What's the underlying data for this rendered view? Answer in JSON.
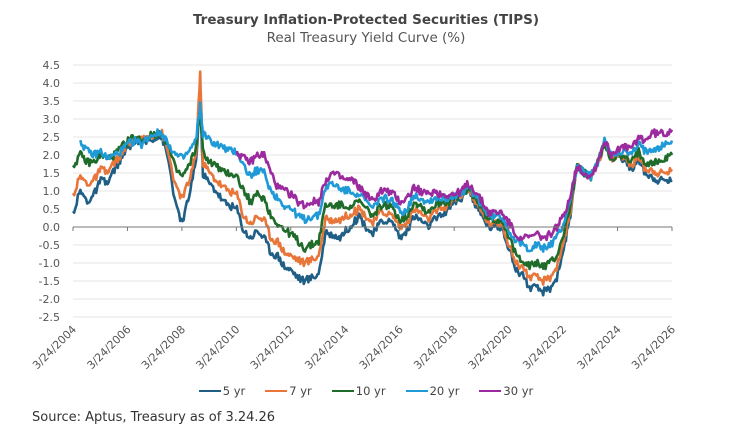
{
  "header": {
    "title": "Treasury Inflation-Protected Securities (TIPS)",
    "subtitle": "Real Treasury Yield Curve (%)"
  },
  "footer": {
    "source": "Source: Aptus, Treasury as of 3.24.26"
  },
  "chart_data": {
    "type": "line",
    "title": "Treasury Inflation-Protected Securities (TIPS)",
    "subtitle": "Real Treasury Yield Curve (%)",
    "xlabel": "",
    "ylabel": "",
    "ylim": [
      -2.5,
      4.5
    ],
    "xlim": [
      2004.23,
      2026.23
    ],
    "yticks": [
      "4.5",
      "4.0",
      "3.5",
      "3.0",
      "2.5",
      "2.0",
      "1.5",
      "1.0",
      "0.5",
      "0.0",
      "-0.5",
      "-1.0",
      "-1.5",
      "-2.0",
      "-2.5"
    ],
    "ytick_values": [
      4.5,
      4.0,
      3.5,
      3.0,
      2.5,
      2.0,
      1.5,
      1.0,
      0.5,
      0.0,
      -0.5,
      -1.0,
      -1.5,
      -2.0,
      -2.5
    ],
    "xticks": [
      "3/24/2004",
      "3/24/2006",
      "3/24/2008",
      "3/24/2010",
      "3/24/2012",
      "3/24/2014",
      "3/24/2016",
      "3/24/2018",
      "3/24/2020",
      "3/24/2022",
      "3/24/2024",
      "3/24/2026"
    ],
    "xtick_values": [
      2004.23,
      2006.23,
      2008.23,
      2010.23,
      2012.23,
      2014.23,
      2016.23,
      2018.23,
      2020.23,
      2022.23,
      2024.23,
      2026.23
    ],
    "grid": true,
    "legend_position": "bottom",
    "x": [
      2004.23,
      2004.5,
      2004.75,
      2005.0,
      2005.25,
      2005.5,
      2005.75,
      2006.0,
      2006.25,
      2006.5,
      2006.75,
      2007.0,
      2007.25,
      2007.5,
      2007.75,
      2008.0,
      2008.25,
      2008.5,
      2008.75,
      2008.9,
      2009.0,
      2009.25,
      2009.5,
      2009.75,
      2010.0,
      2010.25,
      2010.5,
      2010.75,
      2011.0,
      2011.25,
      2011.5,
      2011.75,
      2012.0,
      2012.25,
      2012.5,
      2012.75,
      2013.0,
      2013.25,
      2013.5,
      2013.75,
      2014.0,
      2014.25,
      2014.5,
      2014.75,
      2015.0,
      2015.25,
      2015.5,
      2015.75,
      2016.0,
      2016.25,
      2016.5,
      2016.75,
      2017.0,
      2017.25,
      2017.5,
      2017.75,
      2018.0,
      2018.25,
      2018.5,
      2018.75,
      2019.0,
      2019.25,
      2019.5,
      2019.75,
      2020.0,
      2020.25,
      2020.5,
      2020.75,
      2021.0,
      2021.25,
      2021.5,
      2021.75,
      2022.0,
      2022.25,
      2022.5,
      2022.75,
      2023.0,
      2023.25,
      2023.5,
      2023.75,
      2024.0,
      2024.25,
      2024.5,
      2024.75,
      2025.0,
      2025.25,
      2025.5,
      2025.75,
      2026.0,
      2026.23
    ],
    "series": [
      {
        "name": "5 yr",
        "color": "#1f5f85",
        "values": [
          0.4,
          1.0,
          0.7,
          0.9,
          1.3,
          1.2,
          1.6,
          1.9,
          2.2,
          2.4,
          2.3,
          2.4,
          2.5,
          2.5,
          1.8,
          0.6,
          0.1,
          0.9,
          1.8,
          3.6,
          1.5,
          1.2,
          1.0,
          0.7,
          0.6,
          0.5,
          -0.1,
          -0.3,
          -0.1,
          -0.3,
          -0.7,
          -0.8,
          -1.1,
          -1.2,
          -1.4,
          -1.5,
          -1.4,
          -1.3,
          -0.2,
          -0.2,
          -0.3,
          -0.1,
          0.1,
          0.3,
          0.0,
          -0.2,
          0.1,
          0.2,
          0.1,
          -0.3,
          -0.1,
          0.3,
          0.2,
          0.0,
          0.2,
          0.3,
          0.5,
          0.7,
          0.8,
          1.1,
          0.6,
          0.3,
          0.0,
          0.0,
          0.0,
          -0.6,
          -1.2,
          -1.3,
          -1.7,
          -1.7,
          -1.8,
          -1.7,
          -1.4,
          -0.6,
          0.3,
          1.7,
          1.5,
          1.4,
          1.8,
          2.3,
          1.9,
          2.0,
          1.8,
          1.6,
          1.9,
          1.5,
          1.4,
          1.3,
          1.3,
          1.3
        ]
      },
      {
        "name": "7 yr",
        "color": "#e8763a",
        "values": [
          0.9,
          1.4,
          1.2,
          1.3,
          1.6,
          1.5,
          1.8,
          2.0,
          2.3,
          2.5,
          2.4,
          2.5,
          2.6,
          2.6,
          2.0,
          1.1,
          0.8,
          1.3,
          2.0,
          4.3,
          1.8,
          1.5,
          1.3,
          1.1,
          1.0,
          0.9,
          0.3,
          0.1,
          0.3,
          0.2,
          -0.3,
          -0.4,
          -0.7,
          -0.8,
          -0.9,
          -1.0,
          -0.9,
          -0.8,
          0.2,
          0.2,
          0.2,
          0.3,
          0.4,
          0.5,
          0.3,
          0.1,
          0.4,
          0.4,
          0.3,
          0.0,
          0.1,
          0.5,
          0.4,
          0.2,
          0.4,
          0.5,
          0.6,
          0.8,
          0.9,
          1.1,
          0.7,
          0.4,
          0.1,
          0.1,
          0.1,
          -0.5,
          -1.0,
          -1.1,
          -1.4,
          -1.4,
          -1.5,
          -1.4,
          -1.1,
          -0.4,
          0.4,
          1.7,
          1.5,
          1.4,
          1.8,
          2.3,
          1.9,
          2.0,
          1.9,
          1.7,
          2.0,
          1.6,
          1.6,
          1.5,
          1.5,
          1.6
        ]
      },
      {
        "name": "10 yr",
        "color": "#1e6b2a",
        "values": [
          1.7,
          2.0,
          1.8,
          1.8,
          2.0,
          1.9,
          2.0,
          2.2,
          2.4,
          2.5,
          2.4,
          2.5,
          2.6,
          2.6,
          2.2,
          1.6,
          1.4,
          1.7,
          2.2,
          3.3,
          2.1,
          1.8,
          1.7,
          1.5,
          1.5,
          1.4,
          1.0,
          0.7,
          0.9,
          0.8,
          0.3,
          0.1,
          -0.1,
          -0.2,
          -0.4,
          -0.6,
          -0.5,
          -0.4,
          0.6,
          0.6,
          0.6,
          0.6,
          0.6,
          0.7,
          0.5,
          0.3,
          0.6,
          0.6,
          0.5,
          0.2,
          0.3,
          0.7,
          0.6,
          0.4,
          0.6,
          0.7,
          0.7,
          0.8,
          0.9,
          1.1,
          0.8,
          0.5,
          0.2,
          0.2,
          0.2,
          -0.3,
          -0.8,
          -0.9,
          -1.1,
          -1.0,
          -1.1,
          -1.0,
          -0.8,
          -0.2,
          0.6,
          1.7,
          1.5,
          1.4,
          1.8,
          2.3,
          1.9,
          2.0,
          1.9,
          1.8,
          2.1,
          1.8,
          1.8,
          1.8,
          1.9,
          2.0
        ]
      },
      {
        "name": "20 yr",
        "color": "#1f9ad6",
        "values": [
          null,
          2.4,
          2.1,
          2.0,
          2.1,
          1.9,
          2.0,
          2.1,
          2.3,
          2.4,
          2.3,
          2.5,
          2.6,
          2.6,
          2.3,
          2.0,
          1.9,
          2.1,
          2.4,
          3.4,
          2.6,
          2.4,
          2.3,
          2.2,
          2.1,
          2.1,
          1.7,
          1.4,
          1.6,
          1.5,
          1.0,
          0.8,
          0.6,
          0.5,
          0.3,
          0.2,
          0.3,
          0.3,
          1.1,
          1.2,
          1.1,
          1.0,
          1.0,
          0.9,
          0.7,
          0.5,
          0.8,
          0.8,
          0.7,
          0.4,
          0.5,
          0.9,
          0.8,
          0.7,
          0.8,
          0.8,
          0.8,
          0.9,
          0.9,
          1.1,
          0.9,
          0.6,
          0.3,
          0.3,
          0.3,
          -0.1,
          -0.4,
          -0.5,
          -0.6,
          -0.5,
          -0.6,
          -0.5,
          -0.3,
          0.1,
          0.8,
          1.7,
          1.5,
          1.4,
          1.8,
          2.4,
          2.0,
          2.1,
          2.1,
          2.0,
          2.3,
          2.1,
          2.2,
          2.2,
          2.3,
          2.4
        ]
      },
      {
        "name": "30 yr",
        "color": "#9b2a9e",
        "values": [
          null,
          null,
          null,
          null,
          null,
          null,
          null,
          null,
          null,
          null,
          null,
          null,
          null,
          null,
          null,
          null,
          null,
          null,
          null,
          null,
          null,
          null,
          null,
          null,
          null,
          2.1,
          1.9,
          1.8,
          2.0,
          2.0,
          1.5,
          1.1,
          1.0,
          0.9,
          0.7,
          0.6,
          0.7,
          0.7,
          1.3,
          1.5,
          1.4,
          1.3,
          1.3,
          1.1,
          0.9,
          0.7,
          1.0,
          1.0,
          0.9,
          0.7,
          0.8,
          1.1,
          1.0,
          0.9,
          1.0,
          0.9,
          0.9,
          0.9,
          1.0,
          1.2,
          1.0,
          0.7,
          0.4,
          0.4,
          0.4,
          0.1,
          -0.2,
          -0.3,
          -0.3,
          -0.2,
          -0.3,
          -0.2,
          0.0,
          0.3,
          0.9,
          1.7,
          1.5,
          1.4,
          1.8,
          2.4,
          2.0,
          2.2,
          2.2,
          2.2,
          2.5,
          2.4,
          2.6,
          2.6,
          2.6,
          2.7
        ]
      }
    ]
  }
}
